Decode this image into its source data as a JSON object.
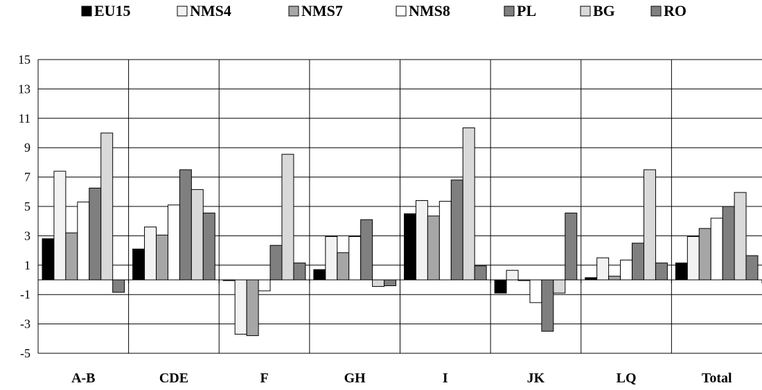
{
  "chart_data": {
    "type": "bar",
    "title": "",
    "xlabel": "",
    "ylabel": "",
    "ylim": [
      -5,
      15
    ],
    "yticks": [
      "-5",
      "-3",
      "-1",
      "1",
      "3",
      "5",
      "7",
      "9",
      "11",
      "13",
      "15"
    ],
    "grid": true,
    "legend_position": "top",
    "categories": [
      "A-B",
      "CDE",
      "F",
      "GH",
      "I",
      "JK",
      "LQ",
      "Total"
    ],
    "series": [
      {
        "name": "EU15",
        "color": "#000000",
        "values": [
          2.8,
          2.1,
          -0.05,
          0.7,
          4.5,
          -0.9,
          0.15,
          1.15
        ]
      },
      {
        "name": "NMS4",
        "color": "#f2f2f2",
        "values": [
          7.4,
          3.6,
          -3.7,
          2.95,
          5.4,
          0.65,
          1.5,
          2.95
        ]
      },
      {
        "name": "NMS7",
        "color": "#a6a6a6",
        "values": [
          3.2,
          3.05,
          -3.8,
          1.85,
          4.35,
          -0.05,
          0.25,
          3.5
        ]
      },
      {
        "name": "NMS8",
        "color": "#ffffff",
        "values": [
          5.3,
          5.1,
          -0.75,
          2.95,
          5.35,
          -1.55,
          1.35,
          4.2
        ]
      },
      {
        "name": "PL",
        "color": "#7f7f7f",
        "values": [
          6.25,
          7.5,
          2.35,
          4.1,
          6.8,
          -3.5,
          2.5,
          5.0
        ]
      },
      {
        "name": "BG",
        "color": "#d9d9d9",
        "values": [
          10.0,
          6.15,
          8.55,
          -0.45,
          10.35,
          -0.9,
          7.5,
          5.95
        ]
      },
      {
        "name": "RO",
        "color": "#808080",
        "values": [
          -0.85,
          4.55,
          1.15,
          -0.4,
          0.95,
          4.55,
          1.15,
          1.65
        ]
      }
    ]
  }
}
